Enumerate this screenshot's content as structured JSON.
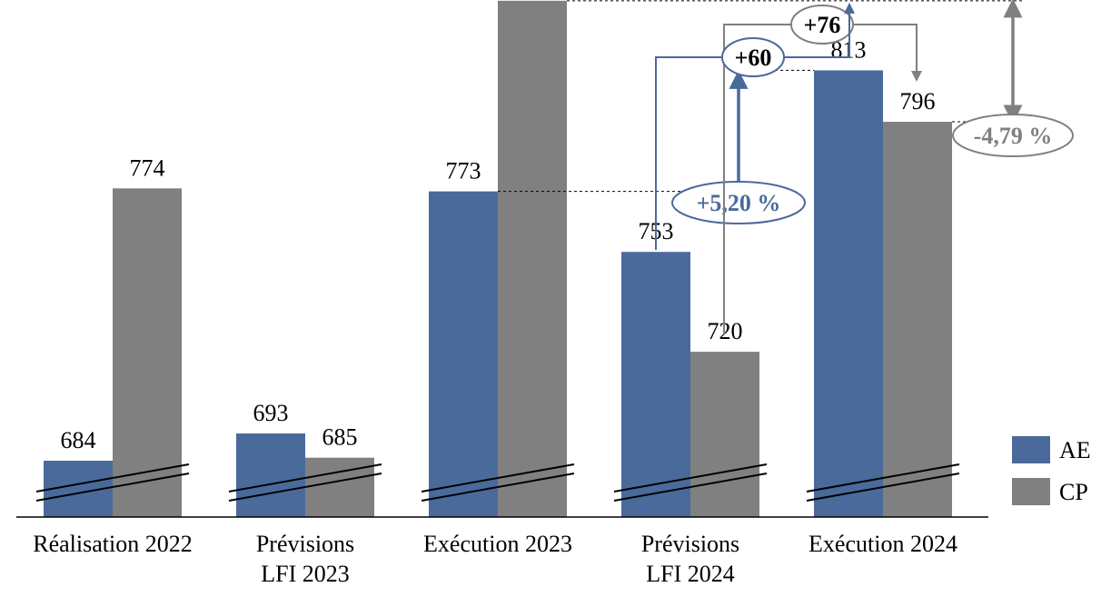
{
  "chart_data": {
    "type": "bar",
    "categories": [
      [
        "Réalisation 2022"
      ],
      [
        "Prévisions",
        "LFI 2023"
      ],
      [
        "Exécution 2023"
      ],
      [
        "Prévisions",
        "LFI 2024"
      ],
      [
        "Exécution 2024"
      ]
    ],
    "series": [
      {
        "name": "AE",
        "values": [
          684,
          693,
          773,
          753,
          813
        ],
        "color": "#4a6a9b"
      },
      {
        "name": "CP",
        "values": [
          774,
          685,
          836,
          720,
          796
        ],
        "color": "#808080"
      }
    ],
    "axis_break": true,
    "legend_position": "bottom-right",
    "annotations": {
      "ae_change_pct": "+5,20 %",
      "cp_change_pct": "-4,79 %",
      "ae_delta": "+60",
      "cp_delta": "+76"
    },
    "colors": {
      "ae": "#4a6a9b",
      "cp": "#808080",
      "ae_anno": "#4a6a9b",
      "cp_anno": "#808080"
    }
  }
}
